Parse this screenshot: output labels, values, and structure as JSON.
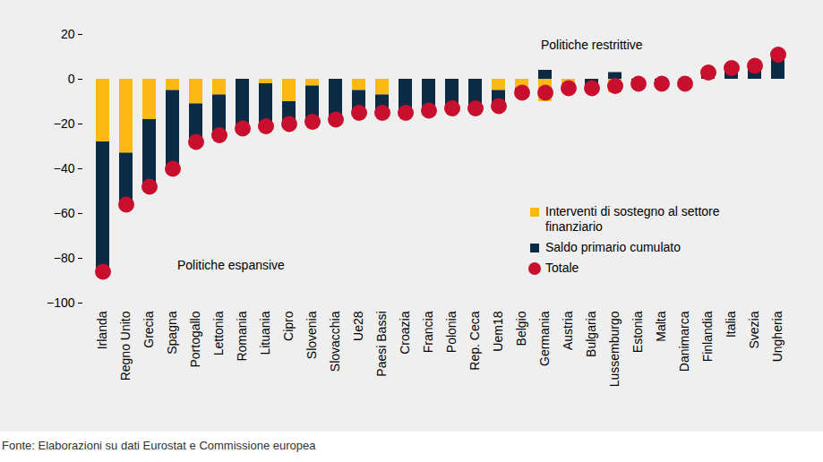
{
  "chart_data": {
    "type": "bar",
    "stacked": true,
    "grid": false,
    "data_labels": false,
    "categories": [
      "Irlanda",
      "Regno Unito",
      "Grecia",
      "Spagna",
      "Portogallo",
      "Lettonia",
      "Romania",
      "Lituania",
      "Cipro",
      "Slovenia",
      "Slovacchia",
      "Ue28",
      "Paesi Bassi",
      "Croazia",
      "Francia",
      "Polonia",
      "Rep. Ceca",
      "Uem18",
      "Belgio",
      "Germania",
      "Austria",
      "Bulgaria",
      "Lussemburgo",
      "Estonia",
      "Malta",
      "Danimarca",
      "Finlandia",
      "Italia",
      "Svezia",
      "Ungheria"
    ],
    "series": [
      {
        "name": "Interventi di sostegno al settore finanziario",
        "type": "bar",
        "color": "#fdb913",
        "values": [
          -28,
          -33,
          -18,
          -5,
          -11,
          -7,
          0,
          -2,
          -10,
          -3,
          0,
          -5,
          -7,
          0,
          0,
          0,
          0,
          -5,
          -4,
          -10,
          -4,
          0,
          -6,
          0,
          0,
          -1,
          0,
          0,
          0,
          0
        ]
      },
      {
        "name": "Saldo primario cumulato",
        "type": "bar",
        "color": "#0b2b45",
        "values": [
          -58,
          -23,
          -30,
          -35,
          -17,
          -18,
          -22,
          -19,
          -10,
          -16,
          -18,
          -10,
          -8,
          -15,
          -14,
          -13,
          -13,
          -7,
          -2,
          4,
          0,
          -4,
          3,
          -2,
          -2,
          -1,
          3,
          5,
          6,
          11
        ]
      },
      {
        "name": "Totale",
        "type": "scatter",
        "marker": "circle",
        "color": "#c8102e",
        "values": [
          -86,
          -56,
          -48,
          -40,
          -28,
          -25,
          -22,
          -21,
          -20,
          -19,
          -18,
          -15,
          -15,
          -15,
          -14,
          -13,
          -13,
          -12,
          -6,
          -6,
          -4,
          -4,
          -3,
          -2,
          -2,
          -2,
          3,
          5,
          6,
          11
        ]
      }
    ],
    "ylim": [
      -100,
      20
    ],
    "yticks": [
      -100,
      -80,
      -60,
      -40,
      -20,
      0,
      20
    ],
    "annotations": [
      "Politiche espansive",
      "Politiche restrittive"
    ],
    "source": "Fonte: Elaborazioni su dati Eurostat e Commissione europea"
  }
}
